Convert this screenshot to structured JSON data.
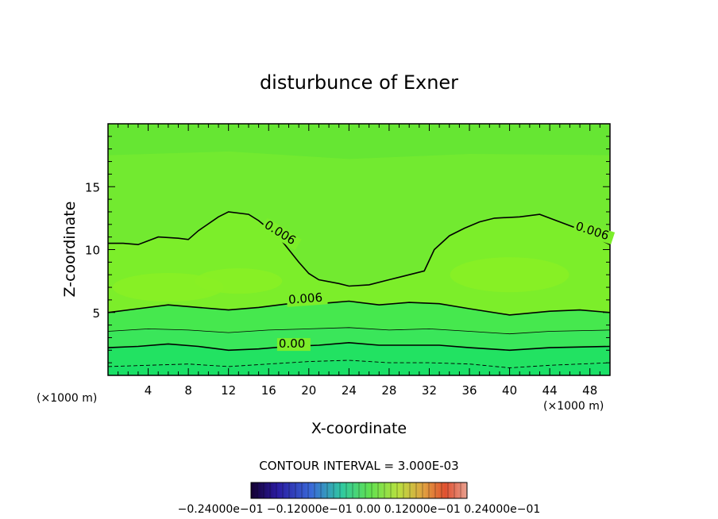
{
  "chart_data": {
    "type": "heatmap",
    "title": "disturbunce of Exner",
    "xlabel": "X-coordinate",
    "ylabel": "Z-coordinate",
    "x_unit_left": "(×1000 m)",
    "x_unit_right": "(×1000 m)",
    "xlim": [
      0,
      50
    ],
    "ylim": [
      0,
      20
    ],
    "x_ticks": [
      4,
      8,
      12,
      16,
      20,
      24,
      28,
      32,
      36,
      40,
      44,
      48
    ],
    "y_ticks": [
      5,
      10,
      15
    ],
    "contour_interval_label": "CONTOUR INTERVAL = 3.000E-03",
    "colorbar_labels": [
      "-0.24000e-01",
      "-0.12000e-01",
      "0.00",
      "0.12000e-01",
      "0.24000e-01"
    ],
    "colorbar_label_text": "−0.24000e−01  −0.12000e−01  0.00  0.12000e−01  0.24000e−01",
    "fill_colors": {
      "top": "#66e633",
      "upper": "#72ea30",
      "middle": "#7cee2a",
      "center": "#8af024",
      "lower": "#46e84e",
      "bottom": "#1ae066"
    },
    "contours": [
      {
        "label": "0.006",
        "style": "solid",
        "points": [
          [
            0,
            10.5
          ],
          [
            1.5,
            10.5
          ],
          [
            3,
            10.4
          ],
          [
            5,
            11
          ],
          [
            7,
            10.9
          ],
          [
            8,
            10.8
          ],
          [
            9,
            11.5
          ],
          [
            11,
            12.6
          ],
          [
            12,
            13
          ],
          [
            14,
            12.8
          ],
          [
            15,
            12.3
          ],
          [
            17,
            11
          ],
          [
            19,
            9
          ],
          [
            20,
            8.1
          ],
          [
            21,
            7.6
          ],
          [
            23,
            7.3
          ],
          [
            24,
            7.1
          ],
          [
            26,
            7.2
          ],
          [
            28,
            7.6
          ],
          [
            30,
            8
          ],
          [
            31.5,
            8.3
          ],
          [
            32.5,
            10
          ],
          [
            34,
            11.1
          ],
          [
            35.5,
            11.7
          ],
          [
            37,
            12.2
          ],
          [
            38.5,
            12.5
          ],
          [
            41,
            12.6
          ],
          [
            43,
            12.8
          ],
          [
            45,
            12.2
          ],
          [
            47,
            11.6
          ],
          [
            48.5,
            11
          ],
          [
            50,
            10.4
          ]
        ],
        "label_positions": [
          [
            15.5,
            11.8
          ],
          [
            46.5,
            11.6
          ]
        ],
        "label_angles": [
          32,
          18
        ]
      },
      {
        "label": "0.006",
        "style": "solid",
        "points": [
          [
            0,
            5
          ],
          [
            3,
            5.3
          ],
          [
            6,
            5.6
          ],
          [
            9,
            5.4
          ],
          [
            12,
            5.2
          ],
          [
            15,
            5.4
          ],
          [
            18,
            5.7
          ],
          [
            21,
            5.7
          ],
          [
            24,
            5.9
          ],
          [
            27,
            5.6
          ],
          [
            30,
            5.8
          ],
          [
            33,
            5.7
          ],
          [
            36,
            5.3
          ],
          [
            40,
            4.8
          ],
          [
            44,
            5.1
          ],
          [
            47,
            5.2
          ],
          [
            50,
            5
          ]
        ],
        "label_positions": [
          [
            18,
            5.7
          ]
        ],
        "label_angles": [
          -4
        ]
      },
      {
        "label": "",
        "style": "thin",
        "points": [
          [
            0,
            3.5
          ],
          [
            4,
            3.7
          ],
          [
            8,
            3.6
          ],
          [
            12,
            3.4
          ],
          [
            16,
            3.6
          ],
          [
            20,
            3.7
          ],
          [
            24,
            3.8
          ],
          [
            28,
            3.6
          ],
          [
            32,
            3.7
          ],
          [
            36,
            3.5
          ],
          [
            40,
            3.3
          ],
          [
            44,
            3.5
          ],
          [
            50,
            3.6
          ]
        ],
        "label_positions": [],
        "label_angles": []
      },
      {
        "label": "0.00",
        "style": "solid",
        "points": [
          [
            0,
            2.2
          ],
          [
            3,
            2.3
          ],
          [
            6,
            2.5
          ],
          [
            9,
            2.3
          ],
          [
            12,
            2
          ],
          [
            15,
            2.1
          ],
          [
            18,
            2.3
          ],
          [
            21,
            2.4
          ],
          [
            24,
            2.6
          ],
          [
            27,
            2.4
          ],
          [
            30,
            2.4
          ],
          [
            33,
            2.4
          ],
          [
            36,
            2.2
          ],
          [
            40,
            2
          ],
          [
            44,
            2.2
          ],
          [
            50,
            2.3
          ]
        ],
        "label_positions": [
          [
            17,
            2.2
          ]
        ],
        "label_angles": [
          0
        ]
      },
      {
        "label": "",
        "style": "dashed",
        "points": [
          [
            0,
            0.7
          ],
          [
            4,
            0.8
          ],
          [
            8,
            0.9
          ],
          [
            12,
            0.7
          ],
          [
            16,
            0.9
          ],
          [
            20,
            1.1
          ],
          [
            24,
            1.2
          ],
          [
            28,
            1
          ],
          [
            32,
            1
          ],
          [
            36,
            0.9
          ],
          [
            40,
            0.6
          ],
          [
            44,
            0.8
          ],
          [
            50,
            1
          ]
        ],
        "label_positions": [],
        "label_angles": []
      }
    ]
  }
}
